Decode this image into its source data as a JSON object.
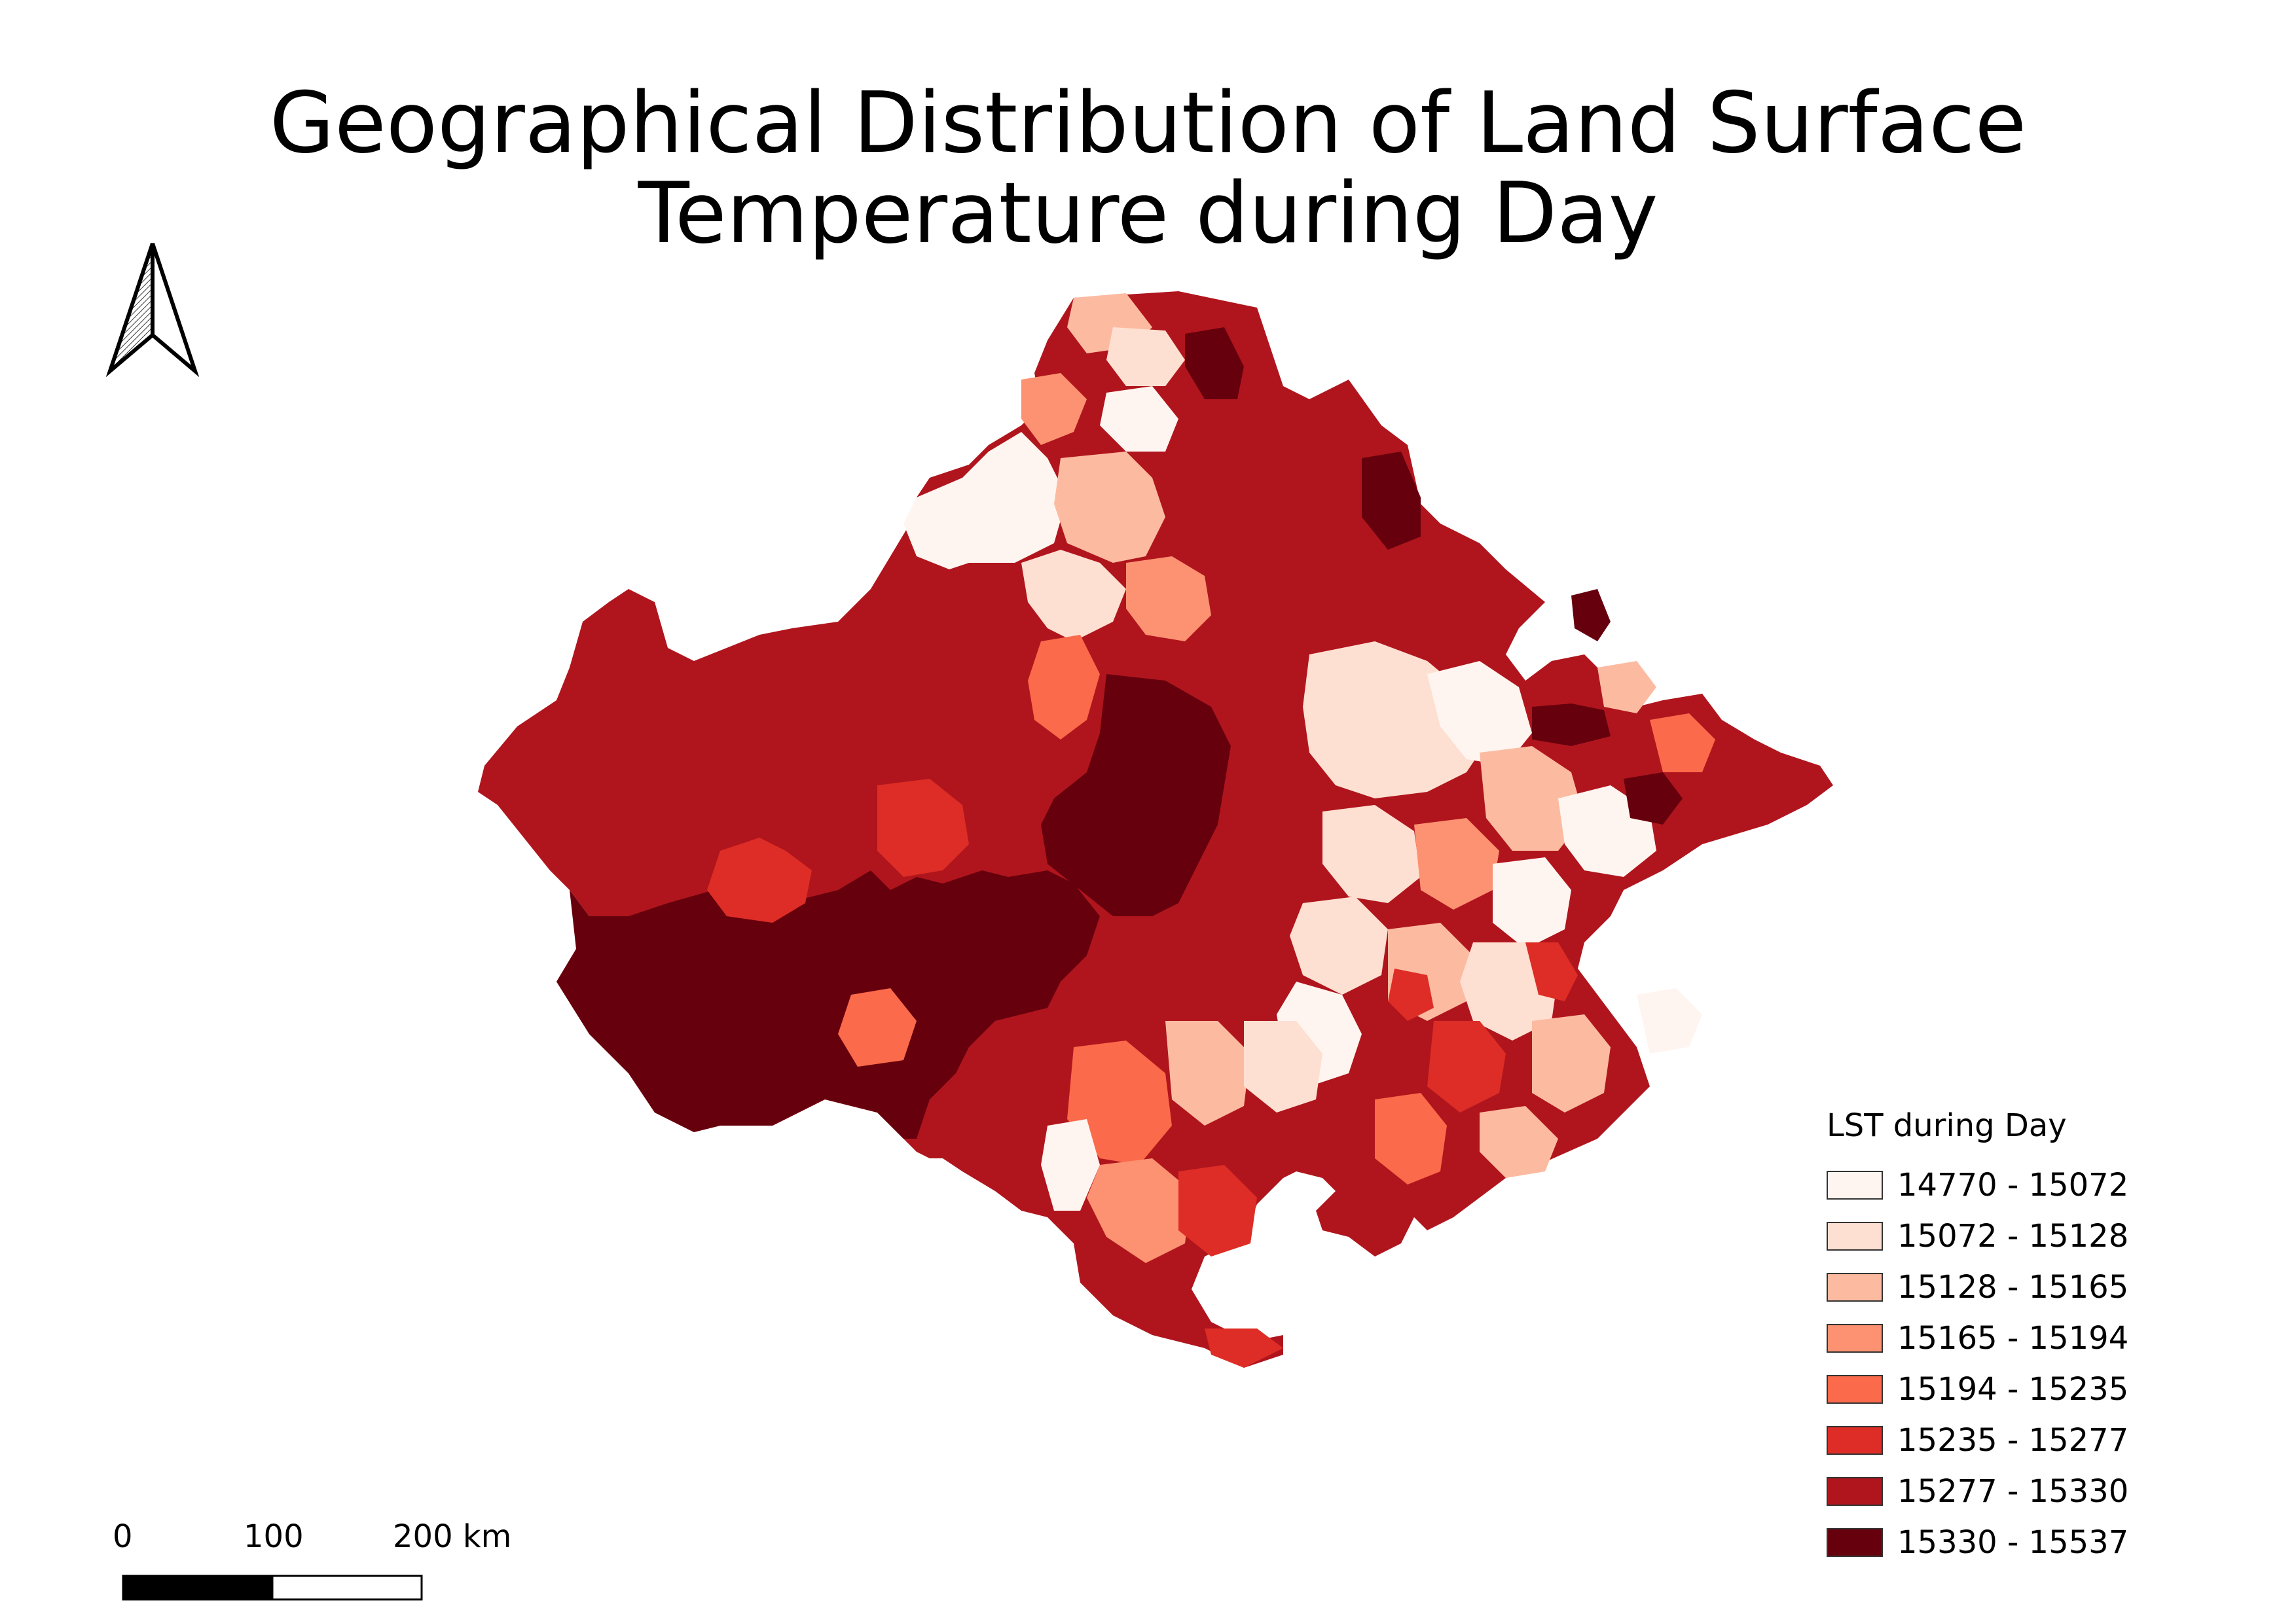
{
  "title": {
    "line1": "Geographical Distribution of Land Surface",
    "line2": "Temperature during Day"
  },
  "north_arrow": {
    "icon": "north-arrow-icon"
  },
  "legend": {
    "title": "LST during Day",
    "classes": [
      {
        "label": "14770 - 15072",
        "color": "#fff5f0"
      },
      {
        "label": "15072 - 15128",
        "color": "#fee0d2"
      },
      {
        "label": "15128 - 15165",
        "color": "#fcbba1"
      },
      {
        "label": "15165 - 15194",
        "color": "#fc9272"
      },
      {
        "label": "15194 - 15235",
        "color": "#fb6a4a"
      },
      {
        "label": "15235 - 15277",
        "color": "#de2d26"
      },
      {
        "label": "15277 - 15330",
        "color": "#b0151d"
      },
      {
        "label": "15330 - 15537",
        "color": "#67000d"
      }
    ]
  },
  "scale_bar": {
    "labels": [
      "0",
      "100",
      "200 km"
    ]
  }
}
